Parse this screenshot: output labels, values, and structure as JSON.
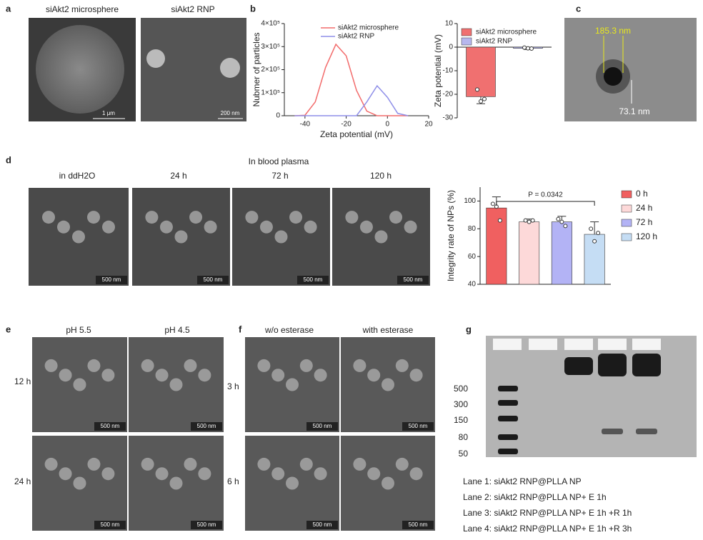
{
  "figure_labels": {
    "a": "a",
    "b": "b",
    "c": "c",
    "d": "d",
    "e": "e",
    "f": "f",
    "g": "g"
  },
  "panel_a": {
    "titles": [
      "siAkt2 microsphere",
      "siAkt2 RNP"
    ],
    "scale_bars": [
      "1 μm",
      "200 nm"
    ]
  },
  "panel_c": {
    "measurements": [
      "185.3 nm",
      "73.1 nm"
    ]
  },
  "panel_d": {
    "group_title": "In blood plasma",
    "titles": [
      "in ddH2O",
      "24 h",
      "72 h",
      "120 h"
    ],
    "scale_bars": [
      "500 nm",
      "500 nm",
      "500 nm",
      "500 nm"
    ]
  },
  "panel_e": {
    "columns": [
      "pH 5.5",
      "pH 4.5"
    ],
    "rows": [
      "12 h",
      "24 h"
    ],
    "scale_bars": [
      "500 nm",
      "500 nm",
      "500 nm",
      "500 nm"
    ]
  },
  "panel_f": {
    "columns": [
      "w/o esterase",
      "with esterase"
    ],
    "rows": [
      "3 h",
      "6 h"
    ],
    "scale_bars": [
      "500 nm",
      "500 nm",
      "500 nm",
      "500 nm"
    ]
  },
  "panel_g": {
    "markers": [
      "500",
      "300",
      "150",
      "80",
      "50"
    ],
    "lanes": [
      "Lane 1: siAkt2 RNP@PLLA NP",
      "Lane 2: siAkt2 RNP@PLLA NP+ E 1h",
      "Lane 3: siAkt2 RNP@PLLA NP+ E 1h +R 1h",
      "Lane 4: siAkt2 RNP@PLLA NP+ E 1h +R 3h"
    ]
  },
  "chart_data": [
    {
      "type": "line",
      "xlabel": "Zeta potential (mV)",
      "ylabel": "Nubmer of particles",
      "x": [
        -45,
        -40,
        -35,
        -30,
        -25,
        -20,
        -15,
        -10,
        -5,
        0,
        5,
        10
      ],
      "series": [
        {
          "name": "siAkt2 microsphere",
          "color": "#f26b6b",
          "values": [
            0,
            2000,
            60000,
            210000,
            310000,
            260000,
            110000,
            20000,
            0,
            0,
            0,
            0
          ]
        },
        {
          "name": "siAkt2 RNP",
          "color": "#8f8fe8",
          "values": [
            0,
            0,
            0,
            0,
            0,
            0,
            0,
            60000,
            130000,
            80000,
            10000,
            0
          ]
        }
      ],
      "xlim": [
        -50,
        20
      ],
      "xticks": [
        -40,
        -20,
        0,
        20
      ],
      "ylim": [
        0,
        400000
      ],
      "yticks": [
        0,
        {
          "value": 100000,
          "label": "1×10⁵"
        },
        {
          "value": 200000,
          "label": "2×10⁵"
        },
        {
          "value": 300000,
          "label": "3×10⁵"
        },
        {
          "value": 400000,
          "label": "4×10⁵"
        }
      ],
      "legend": "upper center"
    },
    {
      "type": "bar",
      "ylabel": "Zeta potential (mV)",
      "categories": [
        "siAkt2 microsphere",
        "siAkt2 RNP"
      ],
      "values": [
        -21,
        -0.5
      ],
      "errors": [
        3,
        0.5
      ],
      "points": [
        [
          -18,
          -23,
          -22
        ],
        [
          -0.2,
          -0.5,
          -0.6
        ]
      ],
      "colors": [
        "#f07070",
        "#b7b7ee"
      ],
      "ylim": [
        -30,
        10
      ],
      "yticks": [
        -30,
        -20,
        -10,
        0,
        10
      ],
      "legend": "upper right"
    },
    {
      "type": "bar",
      "ylabel": "Integrity rate of NPs (%)",
      "annotation": "P = 0.0342",
      "categories": [
        "0 h",
        "24 h",
        "72 h",
        "120 h"
      ],
      "values": [
        95,
        85,
        85,
        76
      ],
      "errors": [
        8,
        2,
        4,
        9
      ],
      "points": [
        [
          98,
          96,
          86
        ],
        [
          86,
          85,
          86
        ],
        [
          87,
          85,
          82
        ],
        [
          80,
          71,
          77
        ]
      ],
      "colors": [
        "#f06060",
        "#fdd9d9",
        "#b3b3f5",
        "#c5ddf4"
      ],
      "ylim": [
        40,
        110
      ],
      "yticks": [
        40,
        60,
        80,
        100
      ],
      "legend": "right"
    }
  ]
}
